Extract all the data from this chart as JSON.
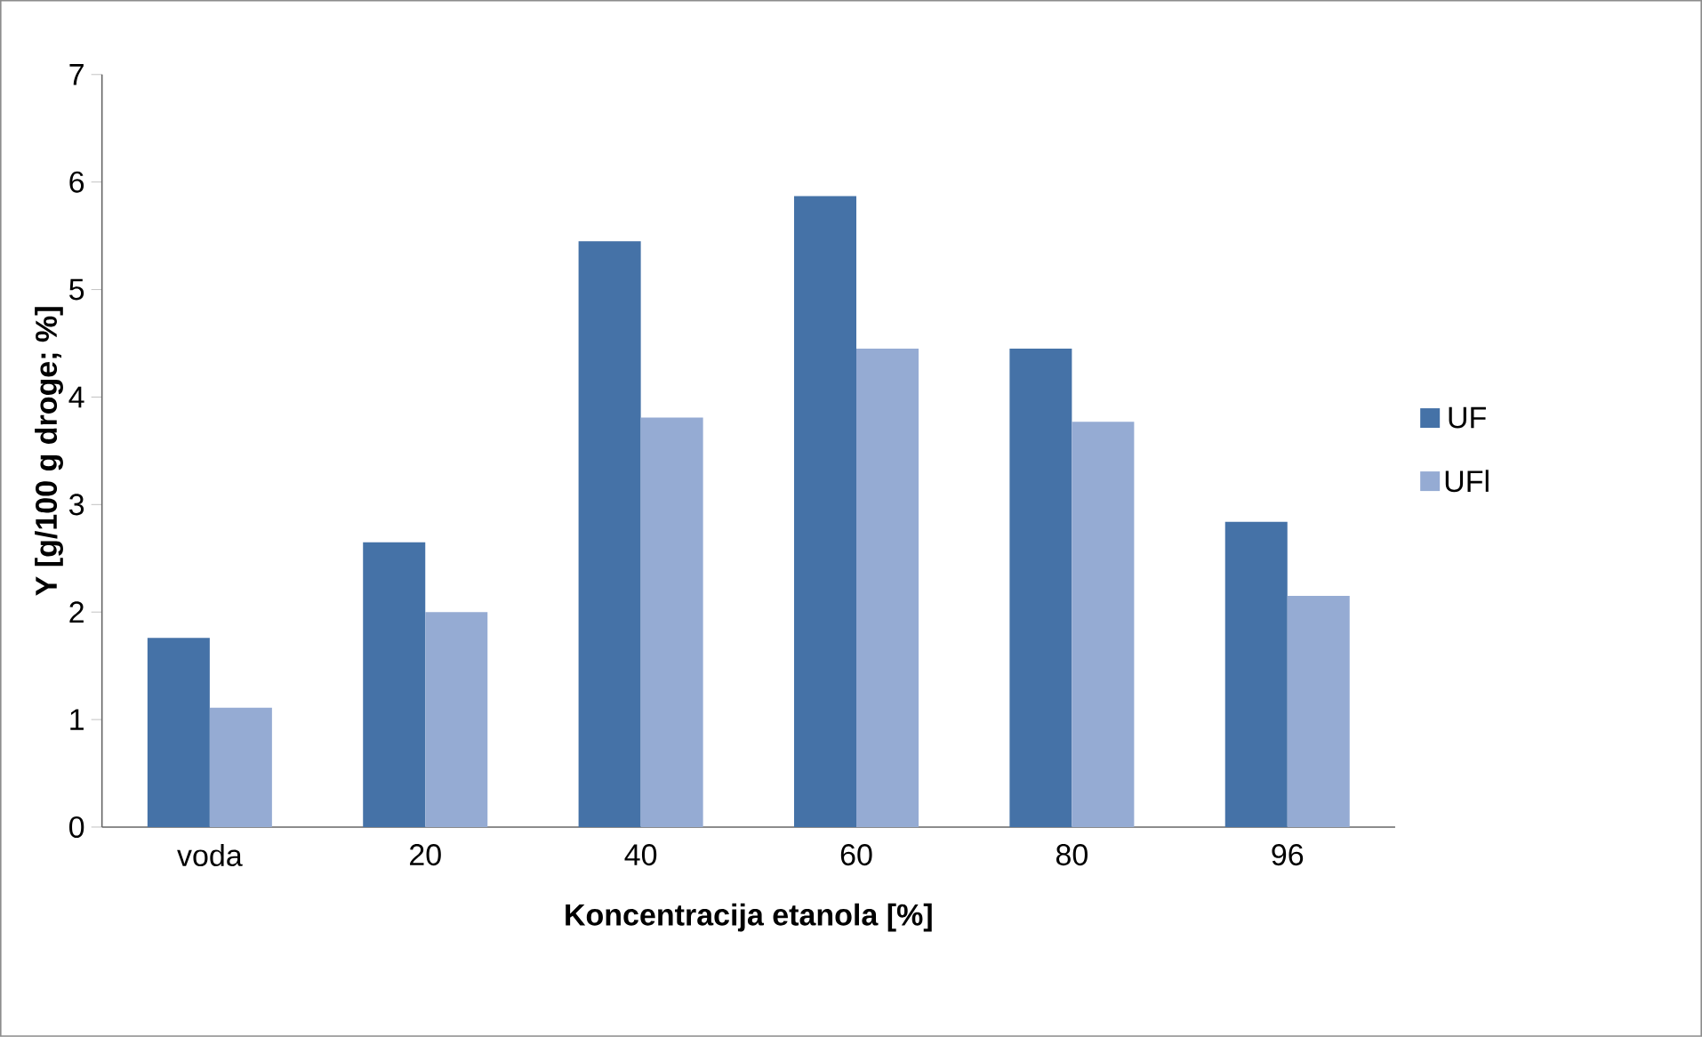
{
  "chart_data": {
    "type": "bar",
    "xlabel": "Koncentracija etanola [%]",
    "ylabel": "Y [g/100 g droge; %]",
    "categories": [
      "voda",
      "20",
      "40",
      "60",
      "80",
      "96"
    ],
    "series": [
      {
        "name": "UF",
        "color": "#4572a7",
        "values": [
          1.76,
          2.65,
          5.45,
          5.87,
          4.45,
          2.84
        ]
      },
      {
        "name": "UFl",
        "color": "#95abd3",
        "values": [
          1.11,
          2.0,
          3.81,
          4.45,
          3.77,
          2.15
        ]
      }
    ],
    "ylim": [
      0,
      7
    ],
    "yticks": [
      0,
      1,
      2,
      3,
      4,
      5,
      6,
      7
    ],
    "grid": false,
    "legend": "right"
  }
}
